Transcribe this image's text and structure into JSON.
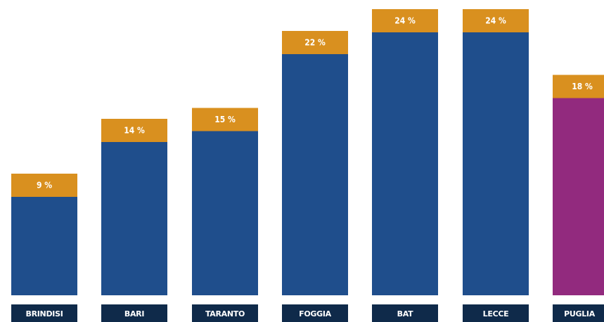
{
  "chart_data": {
    "type": "bar",
    "title": "",
    "xlabel": "",
    "ylabel": "",
    "categories": [
      "BRINDISI",
      "BARI",
      "TARANTO",
      "FOGGIA",
      "BAT",
      "LECCE",
      "PUGLIA"
    ],
    "values": [
      9,
      14,
      15,
      22,
      24,
      24,
      18
    ],
    "value_labels": [
      "9 %",
      "14 %",
      "15 %",
      "22 %",
      "24 %",
      "24 %",
      "18 %"
    ],
    "ylim": [
      0,
      24
    ],
    "grid": false,
    "legend": "none",
    "colors": {
      "bar": "#1f4e8c",
      "highlight_bar": "#922a7e",
      "cap": "#d9901f",
      "category_box": "#0f2a4a",
      "label_text": "#ffffff"
    },
    "highlight_category": "PUGLIA"
  }
}
